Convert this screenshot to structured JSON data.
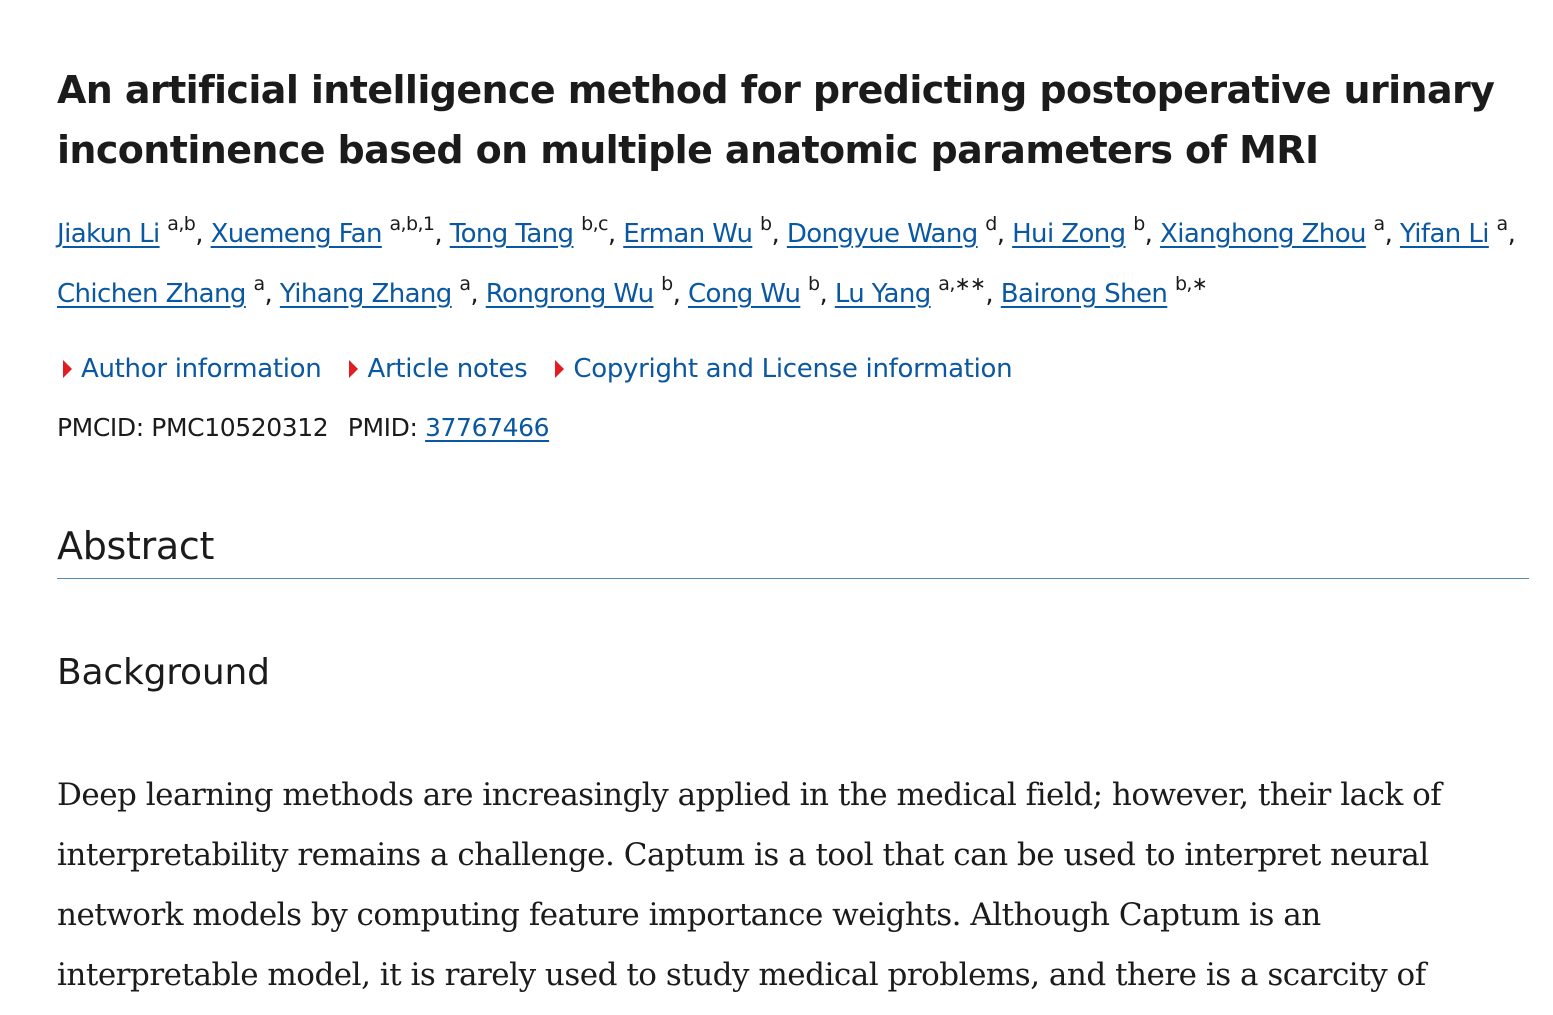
{
  "article": {
    "title": "An artificial intelligence method for predicting postoperative urinary incontinence based on multiple anatomic parameters of MRI",
    "authors": [
      {
        "name": "Jiakun Li",
        "aff": "a,b",
        "sep": ", "
      },
      {
        "name": "Xuemeng Fan",
        "aff": "a,b,1",
        "sep": ", "
      },
      {
        "name": "Tong Tang",
        "aff": "b,c",
        "sep": ", "
      },
      {
        "name": "Erman Wu",
        "aff": "b",
        "sep": ", "
      },
      {
        "name": "Dongyue Wang",
        "aff": "d",
        "sep": ", "
      },
      {
        "name": "Hui Zong",
        "aff": "b",
        "sep": ", "
      },
      {
        "name": "Xianghong Zhou",
        "aff": "a",
        "sep": ", "
      },
      {
        "name": "Yifan Li",
        "aff": "a",
        "sep": ", "
      },
      {
        "name": "Chichen Zhang",
        "aff": "a",
        "sep": ", "
      },
      {
        "name": "Yihang Zhang",
        "aff": "a",
        "sep": ", "
      },
      {
        "name": "Rongrong Wu",
        "aff": "b",
        "sep": ", "
      },
      {
        "name": "Cong Wu",
        "aff": "b",
        "sep": ", "
      },
      {
        "name": "Lu Yang",
        "aff": "a,∗∗",
        "sep": ", "
      },
      {
        "name": "Bairong Shen",
        "aff": "b,∗",
        "sep": ""
      }
    ],
    "accordions": [
      {
        "label": "Author information"
      },
      {
        "label": "Article notes"
      },
      {
        "label": "Copyright and License information"
      }
    ],
    "ids": {
      "pmcid_label": "PMCID:",
      "pmcid_value": "PMC10520312",
      "pmid_label": "PMID:",
      "pmid_value": "37767466"
    },
    "abstract_heading": "Abstract",
    "background_heading": "Background",
    "background_text": "Deep learning methods are increasingly applied in the medical field; however, their lack of interpretability remains a challenge. Captum is a tool that can be used to interpret neural network models by computing feature importance weights. Although Captum is an interpretable model, it is rarely used to study medical problems, and there is a scarcity of"
  },
  "colors": {
    "link": "#0b58a2",
    "accordion_marker": "#e31c23",
    "divider": "#5a8db6",
    "text": "#1b1b1b"
  }
}
